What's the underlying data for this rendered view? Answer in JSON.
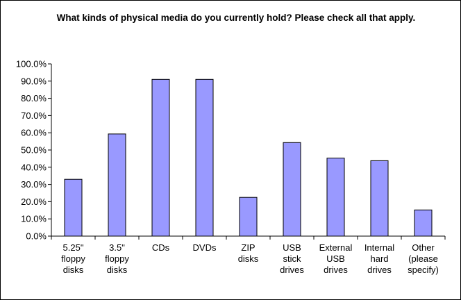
{
  "chart_data": {
    "type": "bar",
    "title": "What kinds of physical media do you currently hold? Please check all that apply.",
    "xlabel": "",
    "ylabel": "",
    "ylim": [
      0,
      100
    ],
    "yticks": [
      "0.0%",
      "10.0%",
      "20.0%",
      "30.0%",
      "40.0%",
      "50.0%",
      "60.0%",
      "70.0%",
      "80.0%",
      "90.0%",
      "100.0%"
    ],
    "categories": [
      [
        "5.25\"",
        "floppy",
        "disks"
      ],
      [
        "3.5\"",
        "floppy",
        "disks"
      ],
      [
        "CDs"
      ],
      [
        "DVDs"
      ],
      [
        "ZIP",
        "disks"
      ],
      [
        "USB",
        "stick",
        "drives"
      ],
      [
        "External",
        "USB",
        "drives"
      ],
      [
        "Internal",
        "hard",
        "drives"
      ],
      [
        "Other",
        "(please",
        "specify)"
      ]
    ],
    "values": [
      33.0,
      59.3,
      91.0,
      91.0,
      22.5,
      54.3,
      45.3,
      43.8,
      15.2
    ],
    "bar_color": "#9999ff",
    "grid": false,
    "legend": "none"
  }
}
